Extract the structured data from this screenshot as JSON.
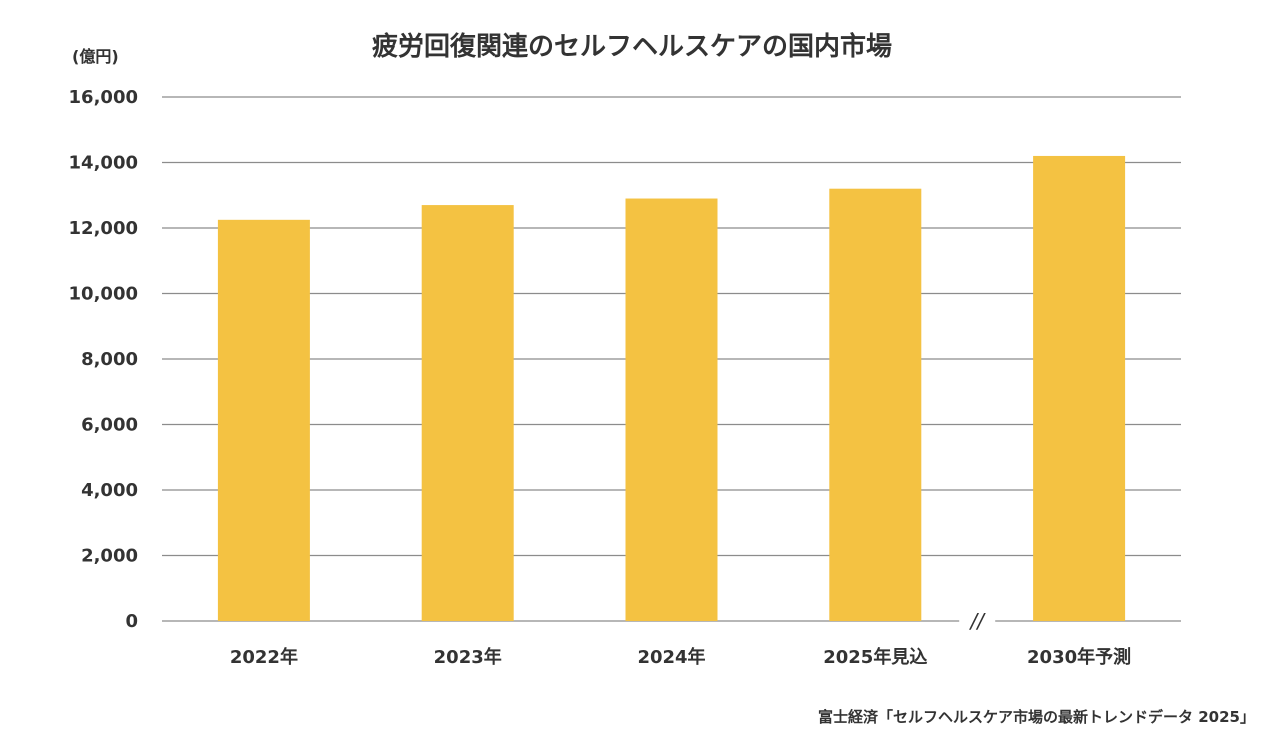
{
  "chart_data": {
    "type": "bar",
    "title": "疲労回復関連のセルフヘルスケアの国内市場",
    "ylabel": "(億円)",
    "xlabel": "",
    "categories": [
      "2022年",
      "2023年",
      "2024年",
      "2025年見込",
      "2030年予測"
    ],
    "values": [
      12250,
      12700,
      12900,
      13200,
      14200
    ],
    "ylim": [
      0,
      16000
    ],
    "yticks": [
      0,
      2000,
      4000,
      6000,
      8000,
      10000,
      12000,
      14000,
      16000
    ],
    "ytick_labels": [
      "0",
      "2,000",
      "4,000",
      "6,000",
      "8,000",
      "10,000",
      "12,000",
      "14,000",
      "16,000"
    ],
    "grid": true,
    "axis_break_marker": "//",
    "bar_color": "#F4C242",
    "source": "富士経済「セルフヘルスケア市場の最新トレンドデータ 2025」"
  }
}
